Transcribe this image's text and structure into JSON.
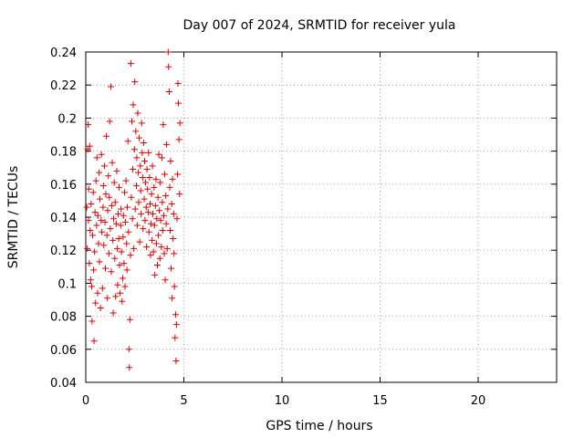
{
  "chart_data": {
    "type": "scatter",
    "title": "Day 007 of 2024, SRMTID for receiver yula",
    "xlabel": "GPS time / hours",
    "ylabel": "SRMTID / TECUs",
    "xlim": [
      0,
      24
    ],
    "ylim": [
      0.04,
      0.24
    ],
    "x_ticks": [
      0,
      5,
      10,
      15,
      20
    ],
    "x_tick_labels": [
      "0",
      "5",
      "10",
      "15",
      "20"
    ],
    "y_ticks": [
      0.04,
      0.06,
      0.08,
      0.1,
      0.12,
      0.14,
      0.16,
      0.18,
      0.2,
      0.22,
      0.24
    ],
    "y_tick_labels": [
      "0.04",
      "0.06",
      "0.08",
      "0.1",
      "0.12",
      "0.14",
      "0.16",
      "0.18",
      "0.2",
      "0.22",
      "0.24"
    ],
    "grid": true,
    "marker": "+",
    "color": "#e00000",
    "series": [
      {
        "points": [
          [
            0.05,
            0.146
          ],
          [
            0.08,
            0.121
          ],
          [
            0.1,
            0.181
          ],
          [
            0.12,
            0.196
          ],
          [
            0.14,
            0.138
          ],
          [
            0.15,
            0.157
          ],
          [
            0.18,
            0.112
          ],
          [
            0.2,
            0.183
          ],
          [
            0.22,
            0.132
          ],
          [
            0.25,
            0.102
          ],
          [
            0.27,
            0.148
          ],
          [
            0.3,
            0.098
          ],
          [
            0.32,
            0.077
          ],
          [
            0.35,
            0.129
          ],
          [
            0.38,
            0.155
          ],
          [
            0.4,
            0.108
          ],
          [
            0.42,
            0.065
          ],
          [
            0.45,
            0.119
          ],
          [
            0.47,
            0.143
          ],
          [
            0.5,
            0.088
          ],
          [
            0.52,
            0.162
          ],
          [
            0.55,
            0.135
          ],
          [
            0.57,
            0.176
          ],
          [
            0.6,
            0.094
          ],
          [
            0.62,
            0.141
          ],
          [
            0.65,
            0.124
          ],
          [
            0.68,
            0.167
          ],
          [
            0.7,
            0.113
          ],
          [
            0.72,
            0.151
          ],
          [
            0.75,
            0.085
          ],
          [
            0.78,
            0.138
          ],
          [
            0.8,
            0.178
          ],
          [
            0.82,
            0.131
          ],
          [
            0.85,
            0.097
          ],
          [
            0.88,
            0.146
          ],
          [
            0.9,
            0.159
          ],
          [
            0.92,
            0.123
          ],
          [
            0.95,
            0.171
          ],
          [
            0.98,
            0.137
          ],
          [
            1.0,
            0.109
          ],
          [
            1.02,
            0.154
          ],
          [
            1.05,
            0.189
          ],
          [
            1.08,
            0.129
          ],
          [
            1.1,
            0.091
          ],
          [
            1.12,
            0.144
          ],
          [
            1.15,
            0.165
          ],
          [
            1.18,
            0.118
          ],
          [
            1.2,
            0.152
          ],
          [
            1.22,
            0.198
          ],
          [
            1.25,
            0.133
          ],
          [
            1.28,
            0.219
          ],
          [
            1.3,
            0.107
          ],
          [
            1.32,
            0.147
          ],
          [
            1.35,
            0.173
          ],
          [
            1.38,
            0.126
          ],
          [
            1.4,
            0.082
          ],
          [
            1.42,
            0.139
          ],
          [
            1.45,
            0.161
          ],
          [
            1.48,
            0.115
          ],
          [
            1.5,
            0.149
          ],
          [
            1.52,
            0.092
          ],
          [
            1.55,
            0.136
          ],
          [
            1.58,
            0.168
          ],
          [
            1.6,
            0.121
          ],
          [
            1.62,
            0.099
          ],
          [
            1.65,
            0.142
          ],
          [
            1.68,
            0.127
          ],
          [
            1.7,
            0.158
          ],
          [
            1.72,
            0.111
          ],
          [
            1.75,
            0.094
          ],
          [
            1.78,
            0.135
          ],
          [
            1.8,
            0.145
          ],
          [
            1.82,
            0.119
          ],
          [
            1.85,
            0.089
          ],
          [
            1.88,
            0.103
          ],
          [
            1.9,
            0.128
          ],
          [
            1.92,
            0.141
          ],
          [
            1.95,
            0.112
          ],
          [
            1.98,
            0.155
          ],
          [
            2.0,
            0.098
          ],
          [
            2.02,
            0.137
          ],
          [
            2.05,
            0.162
          ],
          [
            2.08,
            0.124
          ],
          [
            2.1,
            0.108
          ],
          [
            2.12,
            0.146
          ],
          [
            2.15,
            0.186
          ],
          [
            2.18,
            0.131
          ],
          [
            2.2,
            0.06
          ],
          [
            2.22,
            0.049
          ],
          [
            2.25,
            0.078
          ],
          [
            2.28,
            0.117
          ],
          [
            2.3,
            0.233
          ],
          [
            2.32,
            0.152
          ],
          [
            2.35,
            0.198
          ],
          [
            2.38,
            0.139
          ],
          [
            2.4,
            0.169
          ],
          [
            2.42,
            0.208
          ],
          [
            2.45,
            0.121
          ],
          [
            2.48,
            0.181
          ],
          [
            2.5,
            0.222
          ],
          [
            2.52,
            0.145
          ],
          [
            2.55,
            0.192
          ],
          [
            2.58,
            0.159
          ],
          [
            2.6,
            0.176
          ],
          [
            2.62,
            0.135
          ],
          [
            2.65,
            0.203
          ],
          [
            2.68,
            0.167
          ],
          [
            2.7,
            0.149
          ],
          [
            2.72,
            0.188
          ],
          [
            2.75,
            0.125
          ],
          [
            2.78,
            0.171
          ],
          [
            2.8,
            0.156
          ],
          [
            2.82,
            0.142
          ],
          [
            2.85,
            0.197
          ],
          [
            2.88,
            0.179
          ],
          [
            2.9,
            0.164
          ],
          [
            2.92,
            0.133
          ],
          [
            2.95,
            0.185
          ],
          [
            2.98,
            0.151
          ],
          [
            3.0,
            0.174
          ],
          [
            3.02,
            0.138
          ],
          [
            3.05,
            0.161
          ],
          [
            3.08,
            0.146
          ],
          [
            3.1,
            0.122
          ],
          [
            3.12,
            0.169
          ],
          [
            3.15,
            0.157
          ],
          [
            3.18,
            0.143
          ],
          [
            3.2,
            0.179
          ],
          [
            3.22,
            0.131
          ],
          [
            3.25,
            0.164
          ],
          [
            3.28,
            0.148
          ],
          [
            3.3,
            0.117
          ],
          [
            3.32,
            0.136
          ],
          [
            3.35,
            0.154
          ],
          [
            3.38,
            0.126
          ],
          [
            3.4,
            0.171
          ],
          [
            3.42,
            0.142
          ],
          [
            3.45,
            0.119
          ],
          [
            3.48,
            0.158
          ],
          [
            3.5,
            0.135
          ],
          [
            3.52,
            0.105
          ],
          [
            3.55,
            0.147
          ],
          [
            3.58,
            0.163
          ],
          [
            3.6,
            0.124
          ],
          [
            3.62,
            0.139
          ],
          [
            3.65,
            0.111
          ],
          [
            3.68,
            0.152
          ],
          [
            3.7,
            0.129
          ],
          [
            3.72,
            0.178
          ],
          [
            3.75,
            0.144
          ],
          [
            3.78,
            0.115
          ],
          [
            3.8,
            0.161
          ],
          [
            3.82,
            0.138
          ],
          [
            3.85,
            0.122
          ],
          [
            3.88,
            0.176
          ],
          [
            3.9,
            0.149
          ],
          [
            3.92,
            0.132
          ],
          [
            3.95,
            0.196
          ],
          [
            3.98,
            0.141
          ],
          [
            4.0,
            0.118
          ],
          [
            4.02,
            0.166
          ],
          [
            4.05,
            0.102
          ],
          [
            4.08,
            0.153
          ],
          [
            4.1,
            0.136
          ],
          [
            4.12,
            0.184
          ],
          [
            4.15,
            0.121
          ],
          [
            4.18,
            0.145
          ],
          [
            4.2,
            0.24
          ],
          [
            4.22,
            0.231
          ],
          [
            4.25,
            0.216
          ],
          [
            4.28,
            0.158
          ],
          [
            4.3,
            0.132
          ],
          [
            4.32,
            0.174
          ],
          [
            4.35,
            0.109
          ],
          [
            4.38,
            0.148
          ],
          [
            4.4,
            0.091
          ],
          [
            4.42,
            0.163
          ],
          [
            4.45,
            0.127
          ],
          [
            4.48,
            0.142
          ],
          [
            4.5,
            0.118
          ],
          [
            4.52,
            0.098
          ],
          [
            4.55,
            0.067
          ],
          [
            4.58,
            0.081
          ],
          [
            4.6,
            0.053
          ],
          [
            4.62,
            0.075
          ],
          [
            4.65,
            0.139
          ],
          [
            4.68,
            0.166
          ],
          [
            4.7,
            0.221
          ],
          [
            4.72,
            0.209
          ],
          [
            4.75,
            0.187
          ],
          [
            4.78,
            0.154
          ],
          [
            4.8,
            0.197
          ]
        ]
      }
    ]
  }
}
